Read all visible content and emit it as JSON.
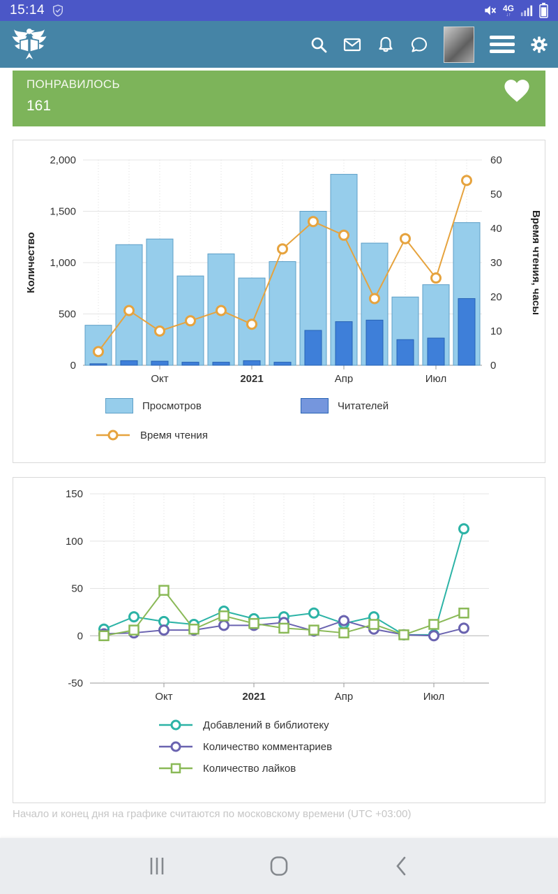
{
  "status_bar": {
    "time": "15:14",
    "network": "4G",
    "icons": [
      "shield-check-icon",
      "mute-icon",
      "network-4g",
      "signal-icon",
      "battery-icon"
    ]
  },
  "header": {
    "icons": [
      "logo-griffin",
      "search-icon",
      "mail-icon",
      "bell-icon",
      "chat-icon",
      "avatar",
      "menu-icon",
      "gear-icon"
    ]
  },
  "like_banner": {
    "label": "ПОНРАВИЛОСЬ",
    "count": "161",
    "icon": "heart-icon",
    "bg_color": "#7db45a"
  },
  "colors": {
    "status_bar_bg": "#4b57c7",
    "header_bg": "#4584a6",
    "nav_bg": "#eaecef"
  },
  "chart_data": [
    {
      "type": "bar",
      "title": "",
      "ylabel_left": "Количество",
      "ylabel_right": "Время чтения, часы",
      "ylim_left": [
        0,
        2000
      ],
      "ylim_right": [
        0,
        60
      ],
      "grid": true,
      "yticks_left": [
        {
          "v": 0,
          "label": "0"
        },
        {
          "v": 500,
          "label": "500"
        },
        {
          "v": 1000,
          "label": "1,000"
        },
        {
          "v": 1500,
          "label": "1,500"
        },
        {
          "v": 2000,
          "label": "2,000"
        }
      ],
      "yticks_right": [
        {
          "v": 0,
          "label": "0"
        },
        {
          "v": 10,
          "label": "10"
        },
        {
          "v": 20,
          "label": "20"
        },
        {
          "v": 30,
          "label": "30"
        },
        {
          "v": 40,
          "label": "40"
        },
        {
          "v": 50,
          "label": "50"
        },
        {
          "v": 60,
          "label": "60"
        }
      ],
      "x_ticks": [
        {
          "i": 2,
          "label": "Окт",
          "bold": false
        },
        {
          "i": 5,
          "label": "2021",
          "bold": true
        },
        {
          "i": 8,
          "label": "Апр",
          "bold": false
        },
        {
          "i": 11,
          "label": "Июл",
          "bold": false
        }
      ],
      "series": [
        {
          "name": "Просмотров",
          "type": "bar",
          "axis": "left",
          "color": "#96cdeb",
          "border": "#5d9fc7",
          "values": [
            390,
            1175,
            1230,
            870,
            1085,
            850,
            1010,
            1500,
            1860,
            1190,
            665,
            785,
            1390
          ]
        },
        {
          "name": "Читателей",
          "type": "bar",
          "axis": "left",
          "color": "#3e7fd9",
          "border": "#2763b5",
          "legend_color": "#7596dd",
          "values": [
            15,
            45,
            40,
            30,
            30,
            45,
            30,
            340,
            425,
            440,
            250,
            265,
            650
          ]
        },
        {
          "name": "Время чтения",
          "type": "line",
          "axis": "right",
          "color": "#e6a33e",
          "marker": "circle",
          "values": [
            4,
            16,
            10,
            13,
            16,
            12,
            34,
            42,
            38,
            19.5,
            37,
            25.5,
            54
          ]
        }
      ],
      "legend_position": "bottom"
    },
    {
      "type": "line",
      "title": "",
      "ylim": [
        -50,
        150
      ],
      "grid": true,
      "yticks": [
        {
          "v": -50,
          "label": "-50"
        },
        {
          "v": 0,
          "label": "0"
        },
        {
          "v": 50,
          "label": "50"
        },
        {
          "v": 100,
          "label": "100"
        },
        {
          "v": 150,
          "label": "150"
        }
      ],
      "x_ticks": [
        {
          "i": 2,
          "label": "Окт",
          "bold": false
        },
        {
          "i": 5,
          "label": "2021",
          "bold": true
        },
        {
          "i": 8,
          "label": "Апр",
          "bold": false
        },
        {
          "i": 11,
          "label": "Июл",
          "bold": false
        }
      ],
      "series": [
        {
          "name": "Добавлений в библиотеку",
          "type": "line",
          "color": "#2cb3a6",
          "marker": "circle",
          "values": [
            7,
            20,
            15,
            12,
            26,
            18,
            20,
            24,
            13,
            20,
            1,
            1,
            113
          ]
        },
        {
          "name": "Количество комментариев",
          "type": "line",
          "color": "#6a63b0",
          "marker": "circle",
          "values": [
            2,
            3,
            6,
            6,
            11,
            11,
            14,
            5,
            16,
            7,
            1,
            0,
            8
          ]
        },
        {
          "name": "Количество лайков",
          "type": "line",
          "color": "#8ab957",
          "marker": "square",
          "values": [
            0,
            6,
            48,
            7,
            21,
            13,
            8,
            6,
            3,
            12,
            1,
            12,
            24
          ]
        }
      ],
      "legend_position": "bottom"
    }
  ],
  "footer": {
    "note": "Начало и конец дня на графике считаются по московскому времени (UTC +03:00)"
  }
}
